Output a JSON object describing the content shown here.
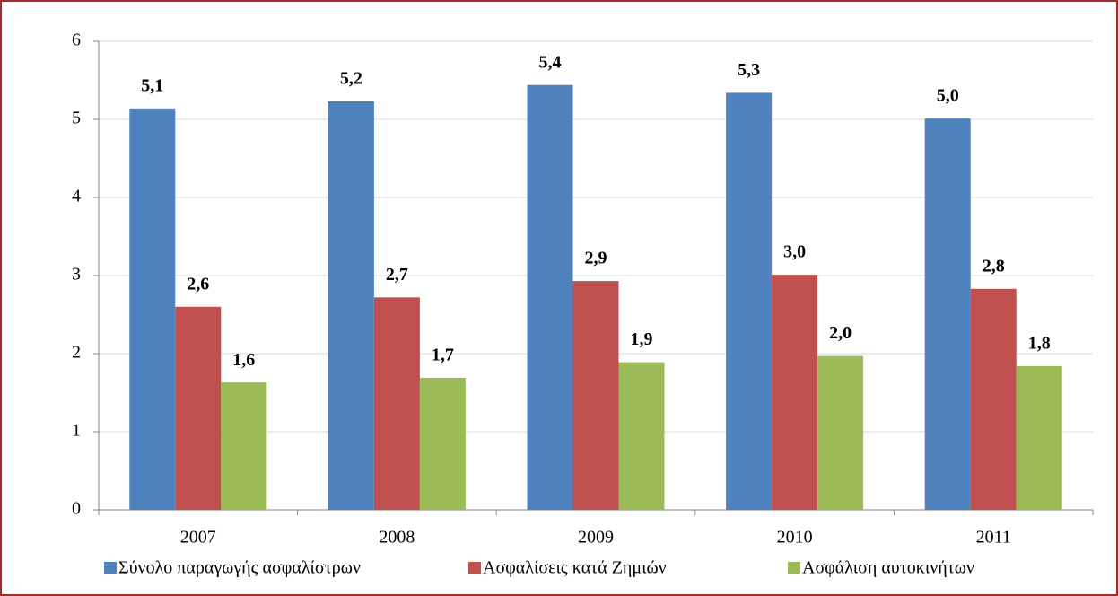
{
  "chart_data": {
    "type": "bar",
    "categories": [
      "2007",
      "2008",
      "2009",
      "2010",
      "2011"
    ],
    "series": [
      {
        "name": "Σύνολο παραγωγής ασφαλίστρων",
        "color": "#4f81bd",
        "values": [
          5.14,
          5.23,
          5.44,
          5.34,
          5.01
        ],
        "value_labels": [
          "5,1",
          "5,2",
          "5,4",
          "5,3",
          "5,0"
        ]
      },
      {
        "name": "Ασφαλίσεις κατά Ζημιών",
        "color": "#c0504d",
        "values": [
          2.6,
          2.72,
          2.93,
          3.01,
          2.83
        ],
        "value_labels": [
          "2,6",
          "2,7",
          "2,9",
          "3,0",
          "2,8"
        ]
      },
      {
        "name": "Ασφάλιση αυτοκινήτων",
        "color": "#9bbb59",
        "values": [
          1.63,
          1.69,
          1.89,
          1.97,
          1.84
        ],
        "value_labels": [
          "1,6",
          "1,7",
          "1,9",
          "2,0",
          "1,8"
        ]
      }
    ],
    "ylim": [
      0,
      6
    ],
    "yticks": [
      0,
      1,
      2,
      3,
      4,
      5,
      6
    ],
    "grid": true,
    "legend": "bottom"
  }
}
